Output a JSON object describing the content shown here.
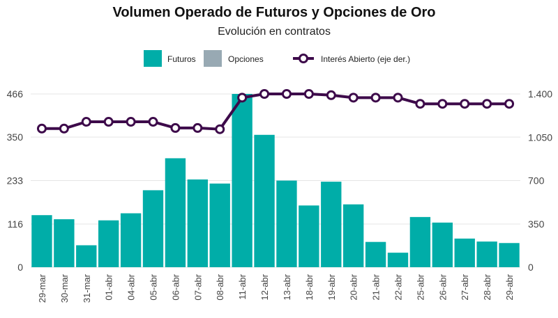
{
  "chart_data": {
    "type": "bar",
    "title": "Volumen Operado de Futuros y Opciones de Oro",
    "subtitle": "Evolución en contratos",
    "categories": [
      "29-mar",
      "30-mar",
      "31-mar",
      "01-abr",
      "04-abr",
      "05-abr",
      "06-abr",
      "07-abr",
      "08-abr",
      "11-abr",
      "12-abr",
      "13-abr",
      "18-abr",
      "19-abr",
      "20-abr",
      "21-abr",
      "22-abr",
      "25-abr",
      "26-abr",
      "27-abr",
      "28-abr",
      "29-abr"
    ],
    "series": [
      {
        "name": "Futuros",
        "kind": "bar",
        "axis": "left",
        "color": "#00ADA8",
        "values": [
          140,
          129,
          59,
          126,
          145,
          207,
          293,
          236,
          225,
          466,
          356,
          233,
          166,
          230,
          169,
          68,
          39,
          135,
          120,
          77,
          69,
          65
        ]
      },
      {
        "name": "Opciones",
        "kind": "bar",
        "axis": "left",
        "color": "#98A9B3",
        "values": [
          0,
          0,
          0,
          0,
          0,
          0,
          0,
          0,
          0,
          0,
          0,
          0,
          0,
          0,
          0,
          0,
          0,
          0,
          0,
          0,
          0,
          0
        ]
      },
      {
        "name": "Interés Abierto (eje der.)",
        "kind": "line",
        "axis": "right",
        "color": "#3D0A4A",
        "values": [
          1120,
          1120,
          1175,
          1175,
          1175,
          1175,
          1125,
          1125,
          1115,
          1370,
          1400,
          1400,
          1400,
          1390,
          1370,
          1370,
          1370,
          1320,
          1320,
          1320,
          1320,
          1320
        ]
      }
    ],
    "y_left": {
      "ticks": [
        0,
        116,
        233,
        350,
        466
      ],
      "tick_labels": [
        "0",
        "116",
        "233",
        "350",
        "466"
      ],
      "ylim": [
        0,
        466
      ]
    },
    "y_right": {
      "ticks": [
        0,
        350,
        700,
        1050,
        1400
      ],
      "tick_labels": [
        "0",
        "350",
        "700",
        "1.050",
        "1.400"
      ],
      "ylim": [
        0,
        1400
      ]
    },
    "legend": {
      "placement": "top-center",
      "labels": [
        "Futuros",
        "Opciones",
        "Interés Abierto (eje der.)"
      ]
    },
    "grid": true,
    "xlabel": "",
    "ylabel": ""
  }
}
